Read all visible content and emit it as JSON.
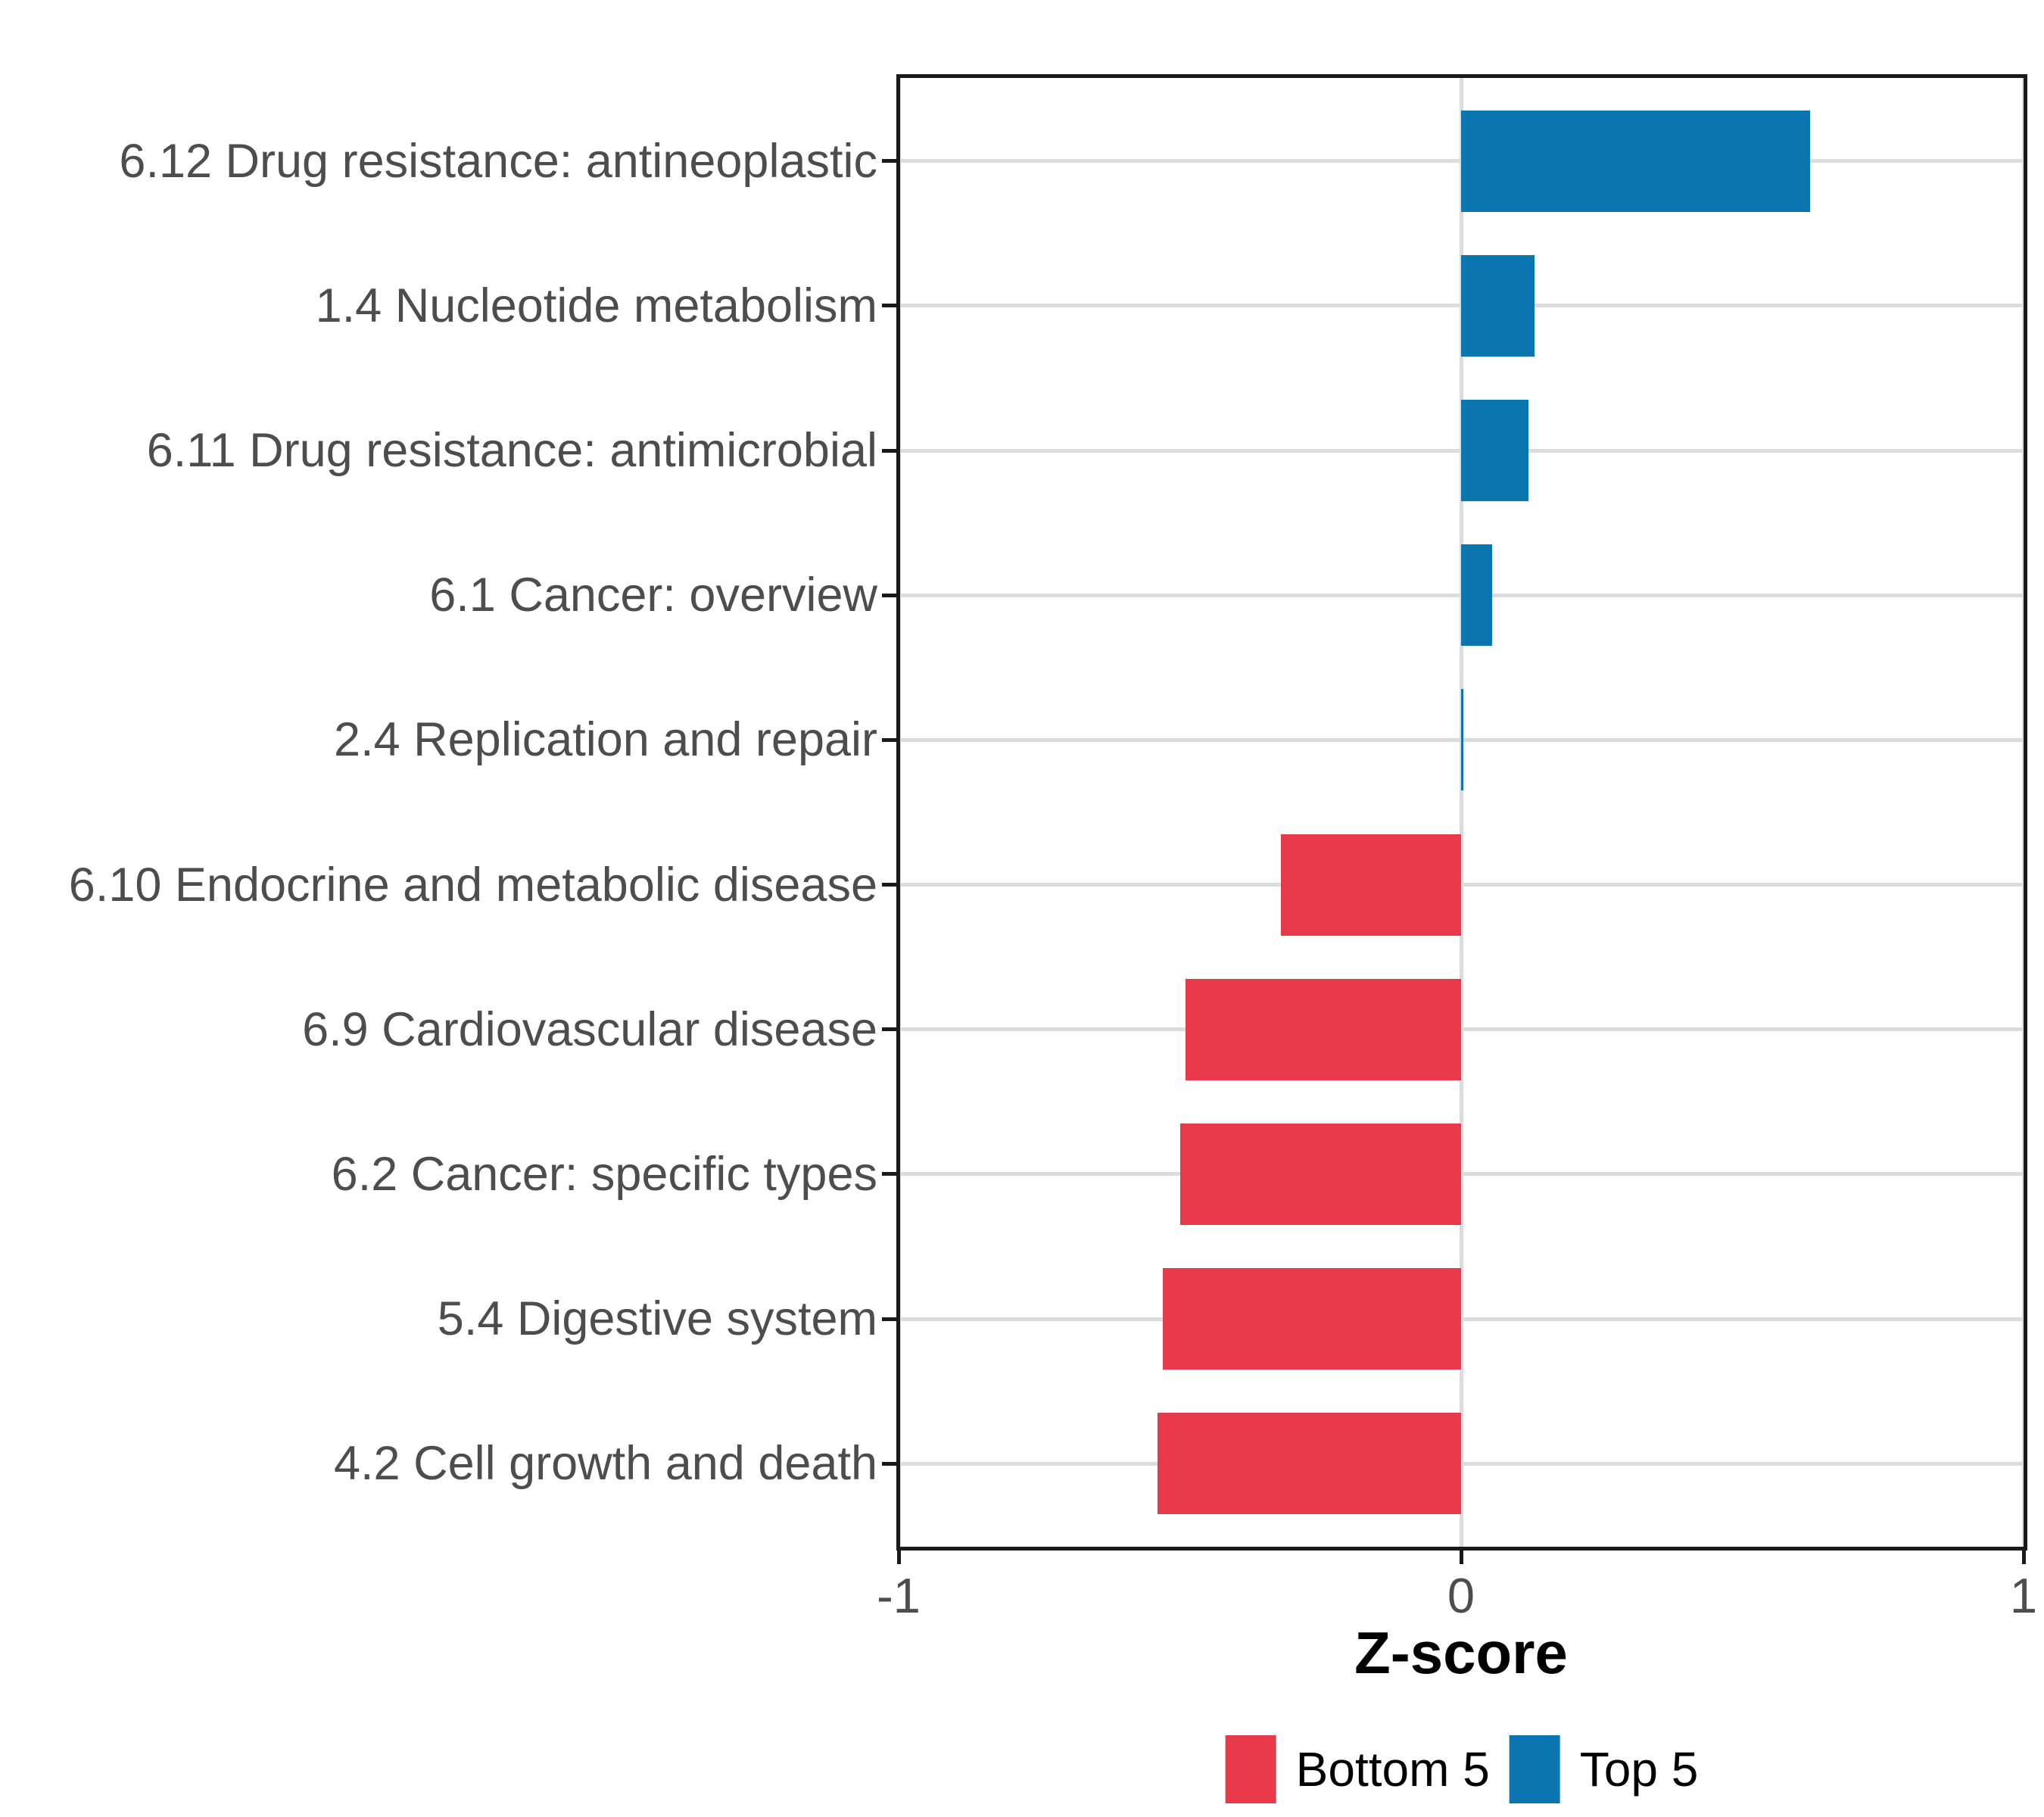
{
  "chart_data": {
    "type": "bar",
    "orientation": "horizontal",
    "title": "",
    "xlabel": "Z-score",
    "ylabel": "",
    "xlim": [
      -1,
      1
    ],
    "x_tick_values": [
      -1,
      0,
      1
    ],
    "x_tick_labels": [
      "-1",
      "0",
      "1"
    ],
    "grid": "major-only",
    "legend_position": "bottom-center",
    "categories": [
      "6.12 Drug resistance: antineoplastic",
      "1.4 Nucleotide metabolism",
      "6.11 Drug resistance: antimicrobial",
      "6.1 Cancer: overview",
      "2.4 Replication and repair",
      "6.10 Endocrine and metabolic disease",
      "6.9 Cardiovascular disease",
      "6.2 Cancer: specific types",
      "5.4 Digestive system",
      "4.2 Cell growth and death"
    ],
    "values": [
      0.62,
      0.13,
      0.12,
      0.055,
      0.004,
      -0.32,
      -0.49,
      -0.5,
      -0.53,
      -0.54
    ],
    "bar_groups": [
      "Top 5",
      "Top 5",
      "Top 5",
      "Top 5",
      "Top 5",
      "Bottom 5",
      "Bottom 5",
      "Bottom 5",
      "Bottom 5",
      "Bottom 5"
    ],
    "legend": [
      {
        "label": "Bottom 5",
        "color": "#e8394a"
      },
      {
        "label": "Top 5",
        "color": "#0b75b2"
      }
    ]
  },
  "colors": {
    "bottom5_red": "#e8394a",
    "top5_blue": "#0b75b2",
    "gridline": "#dcdcdc",
    "axis_text": "#4d4d4d",
    "axis_line": "#1a1a1a",
    "background": "#ffffff"
  }
}
